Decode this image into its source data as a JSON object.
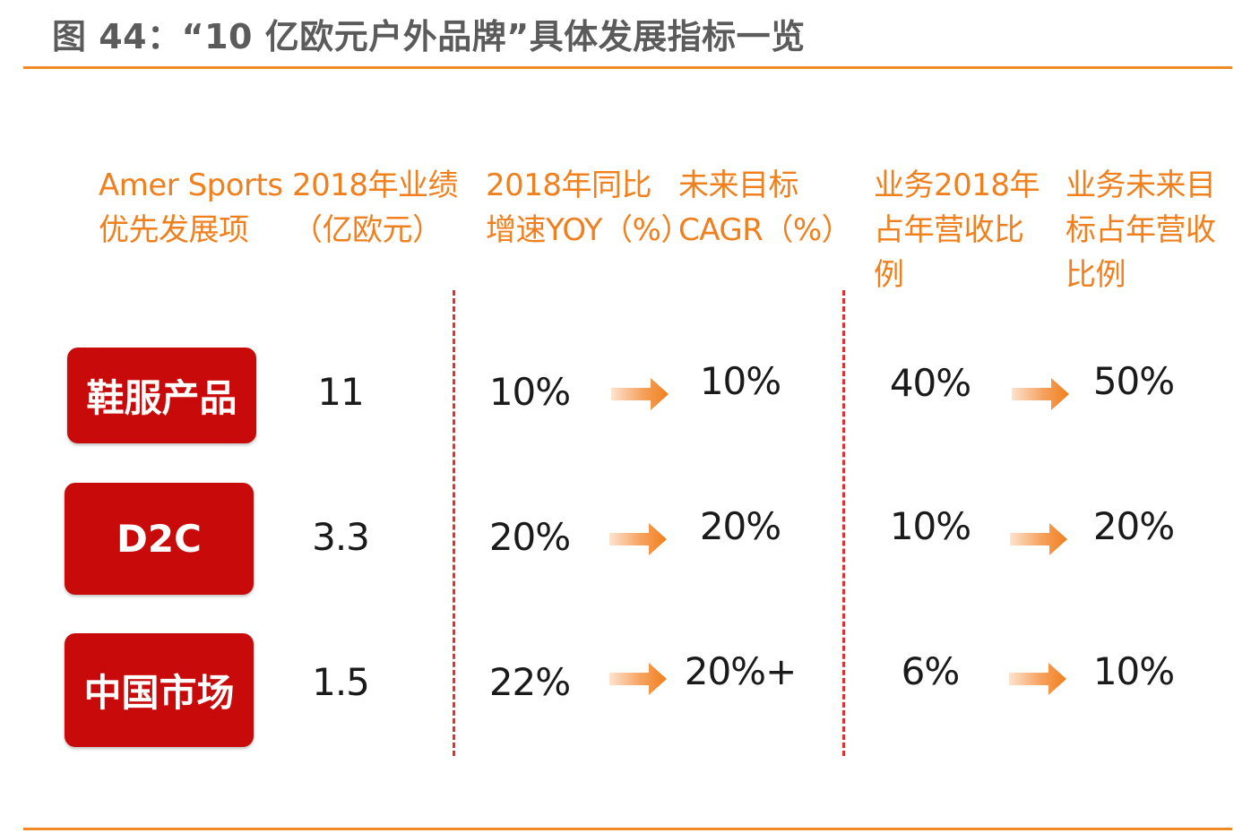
{
  "title": "图 44：“10 亿欧元户外品牌”具体发展指标一览",
  "colors": {
    "accent": "#f08a24",
    "header_text": "#f07f1e",
    "label_bg": "#c80a0a",
    "divider": "#e03030"
  },
  "headers": {
    "col1": "Amer Sports\n优先发展项",
    "col2": "2018年业绩\n（亿欧元）",
    "col3": "2018年同比\n增速YOY（%）",
    "col4": "未来目标\nCAGR（%）",
    "col5": "业务2018年\n占年营收比\n例",
    "col6": "业务未来目\n标占年营收\n比例"
  },
  "rows": [
    {
      "label": "鞋服产品",
      "revenue": "11",
      "yoy": "10%",
      "cagr": "10%",
      "share_2018": "40%",
      "share_target": "50%"
    },
    {
      "label": "D2C",
      "revenue": "3.3",
      "yoy": "20%",
      "cagr": "20%",
      "share_2018": "10%",
      "share_target": "20%"
    },
    {
      "label": "中国市场",
      "revenue": "1.5",
      "yoy": "22%",
      "cagr": "20%+",
      "share_2018": "6%",
      "share_target": "10%"
    }
  ]
}
